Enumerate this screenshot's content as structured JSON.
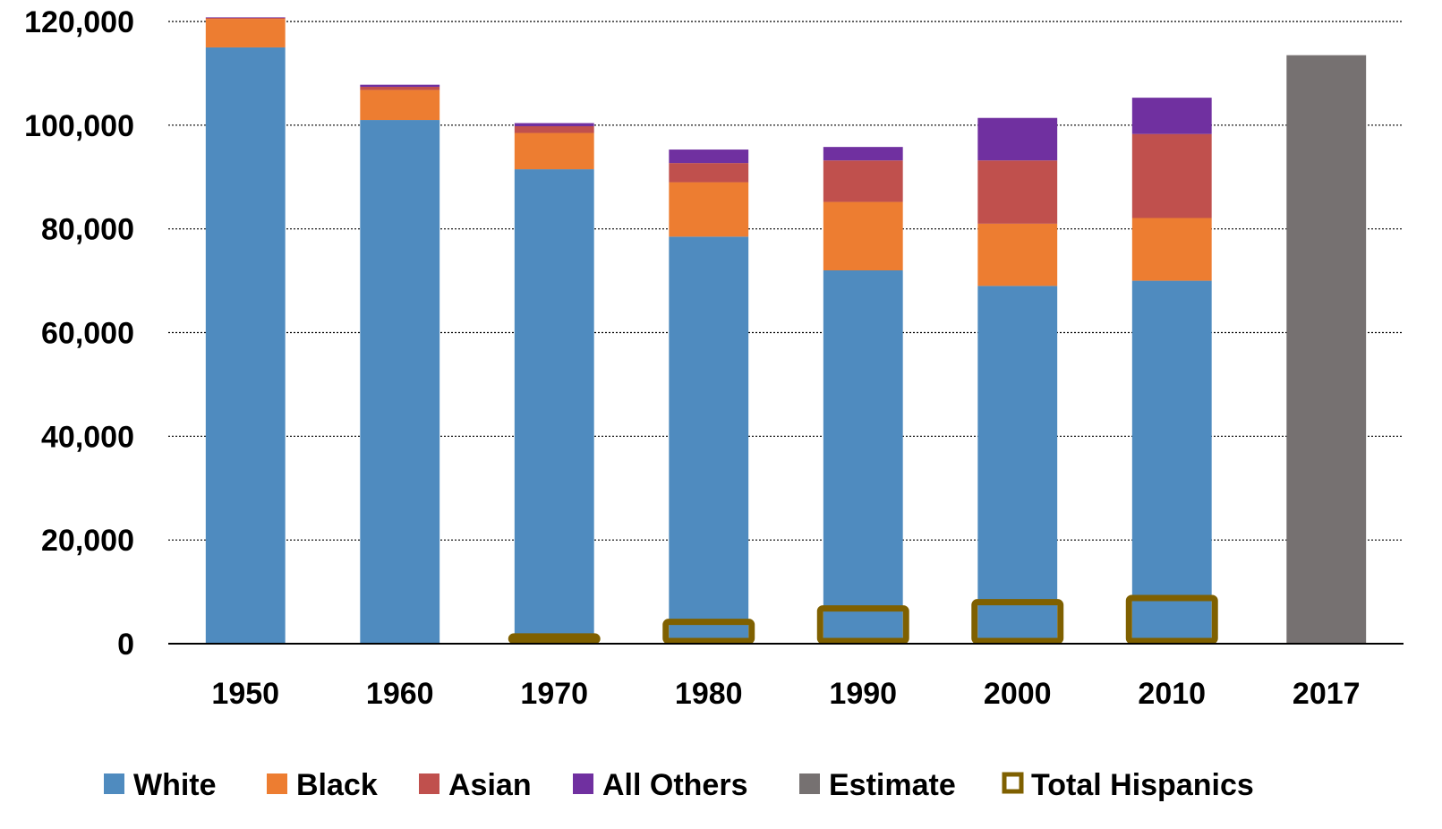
{
  "chart_data": {
    "type": "bar",
    "stacked": true,
    "categories": [
      "1950",
      "1960",
      "1970",
      "1980",
      "1990",
      "2000",
      "2010",
      "2017"
    ],
    "series": [
      {
        "name": "White",
        "color": "#4F8BBF",
        "values": [
          115000,
          101000,
          91500,
          78500,
          72000,
          69000,
          70000,
          0
        ]
      },
      {
        "name": "Black",
        "color": "#ED7D31",
        "values": [
          5500,
          5800,
          7000,
          10500,
          13200,
          12000,
          12100,
          0
        ]
      },
      {
        "name": "Asian",
        "color": "#C0504D",
        "values": [
          200,
          600,
          1300,
          3700,
          8000,
          12200,
          16200,
          0
        ]
      },
      {
        "name": "All Others",
        "color": "#7030A0",
        "values": [
          100,
          400,
          600,
          2600,
          2600,
          8200,
          7000,
          0
        ]
      },
      {
        "name": "Estimate",
        "color": "#767171",
        "values": [
          0,
          0,
          0,
          0,
          0,
          0,
          0,
          113500
        ]
      }
    ],
    "overlay": {
      "name": "Total Hispanics",
      "color": "#7F6000",
      "values": [
        null,
        null,
        1400,
        4200,
        6800,
        8000,
        8800,
        null
      ]
    },
    "y_ticks": [
      "0",
      "20,000",
      "40,000",
      "60,000",
      "80,000",
      "100,000",
      "120,000"
    ],
    "ylim": [
      0,
      120000
    ],
    "grid": true,
    "legend_position": "bottom",
    "title": "",
    "xlabel": "",
    "ylabel": ""
  }
}
